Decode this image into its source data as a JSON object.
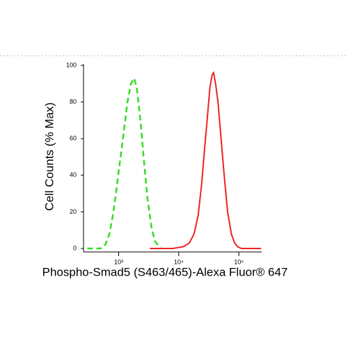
{
  "chart_data": {
    "type": "line",
    "xlabel": "Phospho-Smad5 (S463/465)-Alexa Fluor® 647",
    "ylabel": "Cell Counts (% Max)",
    "xscale": "log",
    "xlim": [
      260,
      240000
    ],
    "xticks": [
      {
        "value": 1000,
        "label": "10³"
      },
      {
        "value": 10000,
        "label": "10⁴"
      },
      {
        "value": 100000,
        "label": "10⁵"
      }
    ],
    "ylim": [
      0,
      100
    ],
    "yticks": [
      0,
      20,
      40,
      60,
      80,
      100
    ],
    "series": [
      {
        "color": "#33dd22",
        "dash": true,
        "x": [
          300,
          500,
          600,
          700,
          800,
          900,
          1000,
          1200,
          1400,
          1600,
          1800,
          2000,
          2300,
          2600,
          3000,
          3500,
          4000,
          5000
        ],
        "values": [
          0,
          0,
          2,
          8,
          18,
          30,
          42,
          62,
          80,
          90,
          93,
          88,
          70,
          50,
          28,
          12,
          4,
          0
        ]
      },
      {
        "color": "#ee2222",
        "dash": false,
        "x": [
          3300,
          8000,
          12000,
          15000,
          18000,
          21000,
          24000,
          27000,
          30000,
          33000,
          36000,
          38000,
          41000,
          45000,
          50000,
          57000,
          65000,
          75000,
          85000,
          95000,
          110000,
          235000
        ],
        "values": [
          0,
          0,
          1,
          3,
          8,
          18,
          35,
          55,
          72,
          88,
          95,
          96,
          90,
          80,
          62,
          40,
          20,
          8,
          3,
          1,
          0,
          0
        ]
      }
    ]
  }
}
